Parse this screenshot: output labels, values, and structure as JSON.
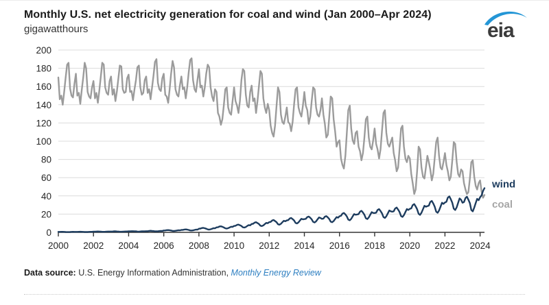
{
  "header": {
    "title": "Monthly U.S. net electricity generation for coal and wind (Jan 2000–Apr 2024)",
    "subtitle": "gigawatthours",
    "logo_text": "eia"
  },
  "footer": {
    "label": "Data source: ",
    "source_text": "U.S. Energy Information Administration, ",
    "link_text": "Monthly Energy Review"
  },
  "colors": {
    "coal_line": "#9b9b9b",
    "wind_line": "#1d3c5e",
    "grid": "#dcdcdc",
    "axis": "#333333",
    "tick_label": "#262626",
    "coal_label": "#a6a6a6",
    "wind_label": "#1d3c5e",
    "logo_swoosh": "#2496d6",
    "logo_text": "#3b3b3b",
    "link_blue": "#2e7fc1"
  },
  "chart_data": {
    "type": "line",
    "title": "Monthly U.S. net electricity generation for coal and wind (Jan 2000–Apr 2024)",
    "xlabel": "",
    "ylabel": "gigawatthours",
    "x_start": "2000-01",
    "x_end": "2024-04",
    "x_ticks": [
      2000,
      2002,
      2004,
      2006,
      2008,
      2010,
      2012,
      2014,
      2016,
      2018,
      2020,
      2022,
      2024
    ],
    "y_ticks": [
      0,
      20,
      40,
      60,
      80,
      100,
      120,
      140,
      160,
      180,
      200
    ],
    "ylim": [
      0,
      200
    ],
    "grid": true,
    "legend_position": "right-of-line-ends",
    "end_labels": [
      {
        "text": "wind",
        "color": "#1d3c5e",
        "y_value": 53
      },
      {
        "text": "coal",
        "color": "#a6a6a6",
        "y_value": 31
      }
    ],
    "series": [
      {
        "name": "coal",
        "color": "#9b9b9b",
        "values": [
          170,
          146,
          150,
          140,
          154,
          170,
          184,
          186,
          158,
          150,
          148,
          163,
          174,
          150,
          153,
          141,
          156,
          170,
          186,
          180,
          154,
          149,
          147,
          159,
          166,
          147,
          153,
          142,
          156,
          171,
          186,
          184,
          159,
          153,
          151,
          166,
          171,
          151,
          157,
          144,
          155,
          169,
          183,
          182,
          157,
          153,
          154,
          169,
          173,
          154,
          155,
          145,
          157,
          167,
          181,
          183,
          159,
          151,
          153,
          167,
          171,
          153,
          157,
          146,
          159,
          172,
          187,
          190,
          164,
          157,
          155,
          169,
          174,
          151,
          149,
          142,
          157,
          174,
          188,
          181,
          157,
          151,
          149,
          161,
          171,
          157,
          159,
          147,
          159,
          175,
          189,
          191,
          167,
          157,
          154,
          167,
          179,
          159,
          161,
          149,
          159,
          174,
          184,
          181,
          159,
          149,
          144,
          157,
          154,
          131,
          127,
          118,
          124,
          139,
          157,
          159,
          137,
          131,
          129,
          144,
          159,
          144,
          139,
          131,
          144,
          167,
          179,
          177,
          151,
          139,
          137,
          154,
          161,
          144,
          147,
          131,
          144,
          161,
          177,
          174,
          147,
          137,
          131,
          141,
          134,
          117,
          109,
          105,
          117,
          139,
          159,
          154,
          129,
          121,
          119,
          127,
          137,
          121,
          119,
          111,
          121,
          141,
          157,
          159,
          137,
          131,
          127,
          139,
          154,
          139,
          134,
          119,
          127,
          144,
          159,
          157,
          137,
          129,
          127,
          134,
          147,
          129,
          119,
          104,
          107,
          127,
          149,
          147,
          124,
          111,
          94,
          99,
          101,
          81,
          74,
          70,
          84,
          109,
          134,
          139,
          114,
          101,
          97,
          109,
          111,
          94,
          89,
          79,
          87,
          104,
          124,
          127,
          104,
          94,
          91,
          101,
          114,
          97,
          91,
          81,
          91,
          111,
          131,
          134,
          109,
          97,
          94,
          99,
          104,
          87,
          79,
          67,
          71,
          91,
          114,
          117,
          94,
          81,
          77,
          84,
          81,
          64,
          54,
          42,
          47,
          67,
          94,
          91,
          71,
          61,
          59,
          71,
          84,
          77,
          69,
          57,
          64,
          81,
          99,
          104,
          84,
          71,
          69,
          77,
          87,
          74,
          67,
          57,
          61,
          79,
          99,
          97,
          77,
          64,
          61,
          69,
          67,
          54,
          47,
          42,
          44,
          59,
          77,
          79,
          61,
          51,
          47,
          54,
          57,
          45,
          38,
          41
        ]
      },
      {
        "name": "wind",
        "color": "#1d3c5e",
        "values": [
          0.5,
          0.5,
          0.6,
          0.6,
          0.5,
          0.4,
          0.3,
          0.3,
          0.4,
          0.5,
          0.6,
          0.5,
          0.5,
          0.5,
          0.6,
          0.7,
          0.6,
          0.5,
          0.4,
          0.4,
          0.4,
          0.5,
          0.6,
          0.6,
          0.8,
          0.8,
          0.9,
          1.0,
          0.9,
          0.8,
          0.6,
          0.6,
          0.7,
          0.8,
          0.9,
          0.9,
          0.9,
          0.9,
          1.1,
          1.1,
          1.0,
          0.9,
          0.7,
          0.7,
          0.8,
          0.9,
          1.0,
          1.0,
          1.1,
          1.1,
          1.3,
          1.3,
          1.2,
          1.1,
          0.9,
          0.8,
          1.0,
          1.1,
          1.2,
          1.2,
          1.3,
          1.3,
          1.6,
          1.7,
          1.5,
          1.4,
          1.1,
          1.1,
          1.2,
          1.4,
          1.6,
          1.5,
          2.0,
          2.1,
          2.4,
          2.5,
          2.3,
          2.0,
          1.6,
          1.5,
          1.7,
          2.0,
          2.3,
          2.2,
          2.6,
          2.7,
          3.1,
          3.2,
          3.0,
          2.6,
          2.1,
          2.0,
          2.2,
          2.6,
          3.0,
          2.9,
          4.0,
          4.1,
          4.7,
          4.9,
          4.5,
          4.0,
          3.2,
          3.0,
          3.4,
          4.0,
          4.6,
          4.4,
          5.5,
          5.6,
          6.4,
          6.6,
          6.1,
          5.4,
          4.4,
          4.1,
          4.6,
          5.4,
          6.2,
          6.0,
          7.0,
          7.2,
          8.2,
          8.5,
          7.8,
          7.0,
          5.6,
          5.3,
          5.9,
          7.0,
          8.0,
          7.7,
          9.2,
          9.4,
          10.7,
          11.1,
          10.2,
          9.1,
          7.3,
          6.9,
          7.7,
          9.1,
          10.4,
          10.0,
          11.2,
          11.4,
          13.0,
          13.5,
          12.4,
          11.1,
          8.9,
          8.4,
          9.4,
          11.1,
          12.7,
          12.2,
          13.1,
          13.4,
          15.2,
          15.8,
          14.5,
          13.0,
          10.4,
          9.8,
          11.0,
          13.0,
          14.9,
          14.3,
          14.5,
          14.8,
          16.8,
          17.4,
          16.0,
          14.3,
          11.5,
          10.8,
          12.1,
          14.3,
          16.4,
          15.8,
          14.8,
          15.1,
          17.2,
          17.8,
          16.4,
          14.6,
          11.7,
          11.1,
          12.4,
          14.6,
          16.8,
          16.1,
          17.7,
          18.1,
          20.5,
          21.3,
          19.6,
          17.5,
          14.0,
          13.2,
          14.8,
          17.5,
          20.1,
          19.3,
          19.6,
          20.0,
          22.7,
          23.6,
          21.7,
          19.3,
          15.5,
          14.6,
          16.4,
          19.3,
          22.2,
          21.3,
          21.2,
          21.6,
          24.6,
          25.5,
          23.4,
          20.9,
          16.8,
          15.8,
          17.7,
          20.9,
          24.0,
          23.1,
          22.6,
          23.1,
          26.2,
          27.2,
          25.0,
          22.3,
          17.9,
          16.9,
          18.9,
          22.3,
          25.6,
          24.6,
          25.8,
          26.3,
          29.9,
          31.0,
          28.5,
          25.4,
          20.4,
          19.2,
          21.6,
          25.4,
          29.2,
          28.1,
          28.7,
          29.3,
          33.3,
          34.5,
          31.7,
          28.3,
          22.7,
          21.4,
          24.0,
          28.3,
          32.5,
          31.2,
          32.8,
          33.5,
          38.1,
          39.5,
          36.3,
          32.4,
          26.0,
          24.5,
          27.5,
          32.4,
          37.2,
          35.7,
          32.5,
          33.2,
          37.7,
          39.1,
          35.9,
          32.0,
          24.5,
          23.0,
          27.2,
          32.1,
          36.8,
          35.3,
          38.5,
          40.5,
          45.5,
          48.5
        ]
      }
    ]
  }
}
